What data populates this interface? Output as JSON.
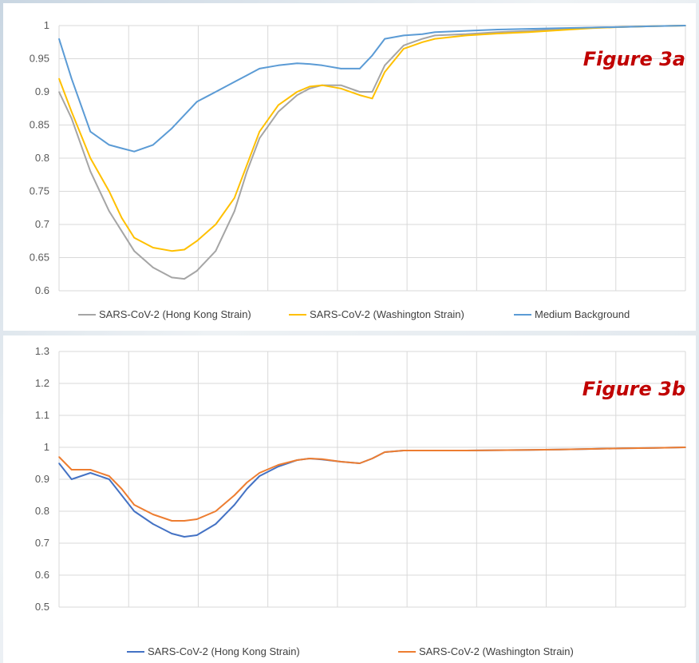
{
  "chart_data": [
    {
      "id": "figure-3a",
      "type": "line",
      "annotation": "Figure 3a",
      "title": "",
      "xlabel": "",
      "ylabel": "",
      "ylim": [
        0.6,
        1
      ],
      "yticks": [
        "1",
        "0.95",
        "0.9",
        "0.85",
        "0.8",
        "0.75",
        "0.7",
        "0.65",
        "0.6"
      ],
      "x_gridlines": 9,
      "grid": true,
      "legend_position": "bottom",
      "x": [
        0,
        0.02,
        0.05,
        0.08,
        0.1,
        0.12,
        0.15,
        0.18,
        0.2,
        0.22,
        0.25,
        0.28,
        0.3,
        0.32,
        0.35,
        0.38,
        0.4,
        0.42,
        0.45,
        0.48,
        0.5,
        0.52,
        0.55,
        0.58,
        0.6,
        0.65,
        0.7,
        0.75,
        0.8,
        0.85,
        0.9,
        0.95,
        1.0
      ],
      "series": [
        {
          "name": "SARS-CoV-2 (Hong Kong Strain)",
          "color": "#a5a5a5",
          "values": [
            0.9,
            0.86,
            0.78,
            0.72,
            0.69,
            0.66,
            0.635,
            0.62,
            0.618,
            0.63,
            0.66,
            0.72,
            0.78,
            0.83,
            0.87,
            0.895,
            0.905,
            0.91,
            0.91,
            0.9,
            0.9,
            0.94,
            0.97,
            0.98,
            0.985,
            0.987,
            0.99,
            0.992,
            0.995,
            0.997,
            0.998,
            0.999,
            1.0
          ]
        },
        {
          "name": "SARS-CoV-2 (Washington Strain)",
          "color": "#ffc000",
          "values": [
            0.92,
            0.87,
            0.8,
            0.75,
            0.71,
            0.68,
            0.665,
            0.66,
            0.662,
            0.675,
            0.7,
            0.74,
            0.79,
            0.84,
            0.88,
            0.9,
            0.908,
            0.91,
            0.905,
            0.895,
            0.89,
            0.93,
            0.965,
            0.975,
            0.98,
            0.985,
            0.988,
            0.99,
            0.993,
            0.996,
            0.998,
            0.999,
            1.0
          ]
        },
        {
          "name": "Medium Background",
          "color": "#5b9bd5",
          "values": [
            0.98,
            0.92,
            0.84,
            0.82,
            0.815,
            0.81,
            0.82,
            0.845,
            0.865,
            0.885,
            0.9,
            0.915,
            0.925,
            0.935,
            0.94,
            0.943,
            0.942,
            0.94,
            0.935,
            0.935,
            0.955,
            0.98,
            0.985,
            0.987,
            0.99,
            0.992,
            0.994,
            0.995,
            0.996,
            0.997,
            0.998,
            0.999,
            1.0
          ]
        }
      ]
    },
    {
      "id": "figure-3b",
      "type": "line",
      "annotation": "Figure 3b",
      "title": "",
      "xlabel": "",
      "ylabel": "",
      "ylim": [
        0.5,
        1.3
      ],
      "yticks": [
        "1.3",
        "1.2",
        "1.1",
        "1",
        "0.9",
        "0.8",
        "0.7",
        "0.6",
        "0.5"
      ],
      "x_gridlines": 9,
      "grid": true,
      "legend_position": "bottom",
      "x": [
        0,
        0.02,
        0.05,
        0.08,
        0.1,
        0.12,
        0.15,
        0.18,
        0.2,
        0.22,
        0.25,
        0.28,
        0.3,
        0.32,
        0.35,
        0.38,
        0.4,
        0.42,
        0.45,
        0.48,
        0.5,
        0.52,
        0.55,
        0.6,
        0.65,
        0.7,
        0.75,
        0.8,
        0.85,
        0.9,
        0.95,
        1.0
      ],
      "series": [
        {
          "name": "SARS-CoV-2 (Hong Kong Strain)",
          "color": "#4472c4",
          "values": [
            0.95,
            0.9,
            0.92,
            0.9,
            0.85,
            0.8,
            0.76,
            0.73,
            0.72,
            0.725,
            0.76,
            0.82,
            0.87,
            0.91,
            0.94,
            0.96,
            0.965,
            0.962,
            0.955,
            0.95,
            0.965,
            0.985,
            0.99,
            0.99,
            0.99,
            0.991,
            0.992,
            0.993,
            0.995,
            0.997,
            0.998,
            1.0
          ]
        },
        {
          "name": "SARS-CoV-2 (Washington Strain)",
          "color": "#ed7d31",
          "values": [
            0.97,
            0.93,
            0.93,
            0.91,
            0.87,
            0.82,
            0.79,
            0.77,
            0.77,
            0.775,
            0.8,
            0.85,
            0.89,
            0.92,
            0.945,
            0.96,
            0.965,
            0.963,
            0.955,
            0.95,
            0.965,
            0.985,
            0.99,
            0.99,
            0.99,
            0.991,
            0.992,
            0.993,
            0.995,
            0.997,
            0.998,
            1.0
          ]
        }
      ]
    }
  ]
}
